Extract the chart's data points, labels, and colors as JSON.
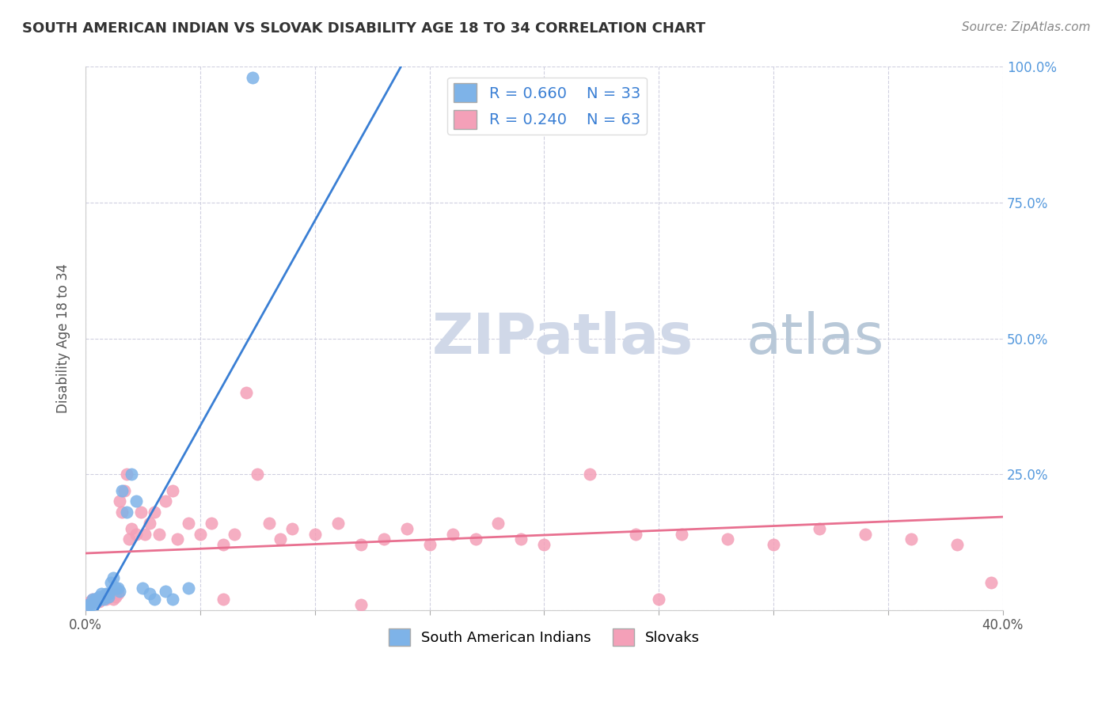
{
  "title": "SOUTH AMERICAN INDIAN VS SLOVAK DISABILITY AGE 18 TO 34 CORRELATION CHART",
  "source": "Source: ZipAtlas.com",
  "xlabel_bottom": "",
  "ylabel": "Disability Age 18 to 34",
  "x_tick_labels": [
    "0.0%",
    "",
    "",
    "",
    "",
    "",
    "",
    "",
    "40.0%"
  ],
  "y_tick_labels_right": [
    "100.0%",
    "75.0%",
    "50.0%",
    "25.0%",
    ""
  ],
  "blue_R": 0.66,
  "blue_N": 33,
  "pink_R": 0.24,
  "pink_N": 63,
  "blue_label": "South American Indians",
  "pink_label": "Slovaks",
  "xlim": [
    0.0,
    0.4
  ],
  "ylim": [
    0.0,
    1.0
  ],
  "background_color": "#ffffff",
  "grid_color": "#d0d0e0",
  "blue_color": "#7eb3e8",
  "pink_color": "#f4a0b8",
  "blue_line_color": "#3a7fd4",
  "pink_line_color": "#e87090",
  "title_color": "#333333",
  "source_color": "#888888",
  "legend_R_color": "#3a7fd4",
  "legend_N_color": "#3a7fd4",
  "watermark_color": "#d0d8e8",
  "blue_x": [
    0.001,
    0.002,
    0.003,
    0.003,
    0.004,
    0.004,
    0.005,
    0.005,
    0.006,
    0.006,
    0.007,
    0.007,
    0.008,
    0.008,
    0.009,
    0.01,
    0.01,
    0.011,
    0.012,
    0.013,
    0.014,
    0.015,
    0.016,
    0.018,
    0.02,
    0.022,
    0.025,
    0.028,
    0.03,
    0.035,
    0.038,
    0.045,
    0.073
  ],
  "blue_y": [
    0.01,
    0.01,
    0.02,
    0.01,
    0.015,
    0.02,
    0.02,
    0.015,
    0.02,
    0.025,
    0.03,
    0.025,
    0.02,
    0.025,
    0.03,
    0.025,
    0.03,
    0.05,
    0.06,
    0.04,
    0.04,
    0.035,
    0.22,
    0.18,
    0.25,
    0.2,
    0.04,
    0.03,
    0.02,
    0.035,
    0.02,
    0.04,
    0.98
  ],
  "pink_x": [
    0.001,
    0.002,
    0.003,
    0.004,
    0.005,
    0.006,
    0.007,
    0.008,
    0.009,
    0.01,
    0.011,
    0.012,
    0.013,
    0.014,
    0.015,
    0.016,
    0.017,
    0.018,
    0.019,
    0.02,
    0.022,
    0.024,
    0.026,
    0.028,
    0.03,
    0.032,
    0.035,
    0.038,
    0.04,
    0.045,
    0.05,
    0.055,
    0.06,
    0.065,
    0.07,
    0.075,
    0.08,
    0.085,
    0.09,
    0.1,
    0.11,
    0.12,
    0.13,
    0.14,
    0.15,
    0.16,
    0.17,
    0.18,
    0.19,
    0.2,
    0.22,
    0.24,
    0.26,
    0.28,
    0.3,
    0.32,
    0.34,
    0.36,
    0.38,
    0.395,
    0.06,
    0.12,
    0.25
  ],
  "pink_y": [
    0.01,
    0.015,
    0.02,
    0.015,
    0.02,
    0.015,
    0.02,
    0.025,
    0.02,
    0.025,
    0.03,
    0.02,
    0.025,
    0.03,
    0.2,
    0.18,
    0.22,
    0.25,
    0.13,
    0.15,
    0.14,
    0.18,
    0.14,
    0.16,
    0.18,
    0.14,
    0.2,
    0.22,
    0.13,
    0.16,
    0.14,
    0.16,
    0.12,
    0.14,
    0.4,
    0.25,
    0.16,
    0.13,
    0.15,
    0.14,
    0.16,
    0.12,
    0.13,
    0.15,
    0.12,
    0.14,
    0.13,
    0.16,
    0.13,
    0.12,
    0.25,
    0.14,
    0.14,
    0.13,
    0.12,
    0.15,
    0.14,
    0.13,
    0.12,
    0.05,
    0.02,
    0.01,
    0.02
  ]
}
